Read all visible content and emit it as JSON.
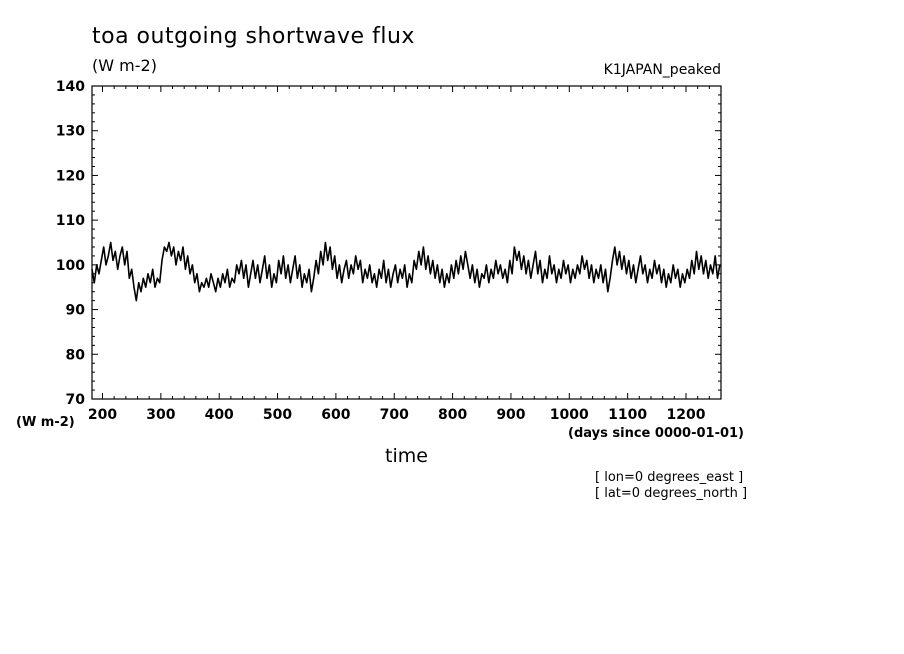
{
  "chart_data": {
    "type": "line",
    "title": "toa outgoing shortwave flux",
    "units": "(W m-2)",
    "dataset": "K1JAPAN_peaked",
    "xlabel": "time",
    "xunits": "(days since 0000-01-01)",
    "yunits": "(W m-2)",
    "lon_note": "[ lon=0 degrees_east ]",
    "lat_note": "[ lat=0 degrees_north ]",
    "xlim": [
      182,
      1260
    ],
    "ylim": [
      70,
      140
    ],
    "xticks": [
      200,
      300,
      400,
      500,
      600,
      700,
      800,
      900,
      1000,
      1100,
      1200
    ],
    "yticks": [
      70,
      80,
      90,
      100,
      110,
      120,
      130,
      140
    ],
    "grid": false,
    "series": [
      {
        "color": "#000000",
        "points": [
          [
            182,
            99
          ],
          [
            186,
            96
          ],
          [
            190,
            100
          ],
          [
            194,
            98
          ],
          [
            198,
            101
          ],
          [
            202,
            104
          ],
          [
            206,
            100
          ],
          [
            210,
            102
          ],
          [
            214,
            105
          ],
          [
            218,
            101
          ],
          [
            222,
            103
          ],
          [
            226,
            99
          ],
          [
            230,
            102
          ],
          [
            234,
            104
          ],
          [
            238,
            100
          ],
          [
            242,
            103
          ],
          [
            246,
            97
          ],
          [
            250,
            99
          ],
          [
            254,
            95
          ],
          [
            258,
            92
          ],
          [
            262,
            96
          ],
          [
            266,
            94
          ],
          [
            270,
            97
          ],
          [
            274,
            95
          ],
          [
            278,
            98
          ],
          [
            282,
            96
          ],
          [
            286,
            99
          ],
          [
            290,
            95
          ],
          [
            294,
            97
          ],
          [
            298,
            96
          ],
          [
            302,
            101
          ],
          [
            306,
            104
          ],
          [
            310,
            103
          ],
          [
            314,
            105
          ],
          [
            318,
            102
          ],
          [
            322,
            104
          ],
          [
            326,
            100
          ],
          [
            330,
            103
          ],
          [
            334,
            101
          ],
          [
            338,
            104
          ],
          [
            342,
            99
          ],
          [
            346,
            102
          ],
          [
            350,
            98
          ],
          [
            354,
            100
          ],
          [
            358,
            96
          ],
          [
            362,
            98
          ],
          [
            366,
            94
          ],
          [
            370,
            96
          ],
          [
            374,
            95
          ],
          [
            378,
            97
          ],
          [
            382,
            95
          ],
          [
            386,
            98
          ],
          [
            390,
            96
          ],
          [
            394,
            94
          ],
          [
            398,
            97
          ],
          [
            402,
            95
          ],
          [
            406,
            98
          ],
          [
            410,
            96
          ],
          [
            414,
            99
          ],
          [
            418,
            95
          ],
          [
            422,
            97
          ],
          [
            426,
            96
          ],
          [
            430,
            100
          ],
          [
            434,
            98
          ],
          [
            438,
            101
          ],
          [
            442,
            97
          ],
          [
            446,
            100
          ],
          [
            450,
            95
          ],
          [
            454,
            98
          ],
          [
            458,
            101
          ],
          [
            462,
            97
          ],
          [
            466,
            100
          ],
          [
            470,
            96
          ],
          [
            474,
            99
          ],
          [
            478,
            102
          ],
          [
            482,
            97
          ],
          [
            486,
            100
          ],
          [
            490,
            95
          ],
          [
            494,
            98
          ],
          [
            498,
            96
          ],
          [
            502,
            101
          ],
          [
            506,
            98
          ],
          [
            510,
            102
          ],
          [
            514,
            97
          ],
          [
            518,
            100
          ],
          [
            522,
            96
          ],
          [
            526,
            99
          ],
          [
            530,
            102
          ],
          [
            534,
            97
          ],
          [
            538,
            100
          ],
          [
            542,
            95
          ],
          [
            546,
            98
          ],
          [
            550,
            96
          ],
          [
            554,
            99
          ],
          [
            558,
            94
          ],
          [
            562,
            97
          ],
          [
            566,
            101
          ],
          [
            570,
            98
          ],
          [
            574,
            103
          ],
          [
            578,
            100
          ],
          [
            582,
            105
          ],
          [
            586,
            101
          ],
          [
            590,
            104
          ],
          [
            594,
            99
          ],
          [
            598,
            102
          ],
          [
            602,
            97
          ],
          [
            606,
            100
          ],
          [
            610,
            96
          ],
          [
            614,
            99
          ],
          [
            618,
            101
          ],
          [
            622,
            97
          ],
          [
            626,
            100
          ],
          [
            630,
            98
          ],
          [
            634,
            102
          ],
          [
            638,
            99
          ],
          [
            642,
            101
          ],
          [
            646,
            96
          ],
          [
            650,
            99
          ],
          [
            654,
            97
          ],
          [
            658,
            100
          ],
          [
            662,
            96
          ],
          [
            666,
            98
          ],
          [
            670,
            95
          ],
          [
            674,
            99
          ],
          [
            678,
            97
          ],
          [
            682,
            101
          ],
          [
            686,
            96
          ],
          [
            690,
            99
          ],
          [
            694,
            95
          ],
          [
            698,
            98
          ],
          [
            702,
            100
          ],
          [
            706,
            96
          ],
          [
            710,
            99
          ],
          [
            714,
            97
          ],
          [
            718,
            100
          ],
          [
            722,
            95
          ],
          [
            726,
            98
          ],
          [
            730,
            96
          ],
          [
            734,
            101
          ],
          [
            738,
            99
          ],
          [
            742,
            103
          ],
          [
            746,
            100
          ],
          [
            750,
            104
          ],
          [
            754,
            99
          ],
          [
            758,
            102
          ],
          [
            762,
            98
          ],
          [
            766,
            101
          ],
          [
            770,
            97
          ],
          [
            774,
            100
          ],
          [
            778,
            96
          ],
          [
            782,
            99
          ],
          [
            786,
            95
          ],
          [
            790,
            98
          ],
          [
            794,
            96
          ],
          [
            798,
            100
          ],
          [
            802,
            97
          ],
          [
            806,
            101
          ],
          [
            810,
            98
          ],
          [
            814,
            102
          ],
          [
            818,
            99
          ],
          [
            822,
            103
          ],
          [
            826,
            100
          ],
          [
            830,
            97
          ],
          [
            834,
            100
          ],
          [
            838,
            96
          ],
          [
            842,
            99
          ],
          [
            846,
            95
          ],
          [
            850,
            98
          ],
          [
            854,
            97
          ],
          [
            858,
            100
          ],
          [
            862,
            96
          ],
          [
            866,
            99
          ],
          [
            870,
            97
          ],
          [
            874,
            101
          ],
          [
            878,
            98
          ],
          [
            882,
            100
          ],
          [
            886,
            97
          ],
          [
            890,
            99
          ],
          [
            894,
            96
          ],
          [
            898,
            101
          ],
          [
            902,
            98
          ],
          [
            906,
            104
          ],
          [
            910,
            101
          ],
          [
            914,
            103
          ],
          [
            918,
            99
          ],
          [
            922,
            102
          ],
          [
            926,
            98
          ],
          [
            930,
            101
          ],
          [
            934,
            97
          ],
          [
            938,
            100
          ],
          [
            942,
            103
          ],
          [
            946,
            98
          ],
          [
            950,
            101
          ],
          [
            954,
            96
          ],
          [
            958,
            99
          ],
          [
            962,
            97
          ],
          [
            966,
            102
          ],
          [
            970,
            98
          ],
          [
            974,
            100
          ],
          [
            978,
            96
          ],
          [
            982,
            99
          ],
          [
            986,
            97
          ],
          [
            990,
            101
          ],
          [
            994,
            98
          ],
          [
            998,
            100
          ],
          [
            1002,
            96
          ],
          [
            1006,
            99
          ],
          [
            1010,
            97
          ],
          [
            1014,
            100
          ],
          [
            1018,
            98
          ],
          [
            1022,
            102
          ],
          [
            1026,
            99
          ],
          [
            1030,
            101
          ],
          [
            1034,
            97
          ],
          [
            1038,
            100
          ],
          [
            1042,
            96
          ],
          [
            1046,
            99
          ],
          [
            1050,
            97
          ],
          [
            1054,
            100
          ],
          [
            1058,
            96
          ],
          [
            1062,
            99
          ],
          [
            1066,
            94
          ],
          [
            1070,
            97
          ],
          [
            1074,
            101
          ],
          [
            1078,
            104
          ],
          [
            1082,
            100
          ],
          [
            1086,
            103
          ],
          [
            1090,
            99
          ],
          [
            1094,
            102
          ],
          [
            1098,
            98
          ],
          [
            1102,
            101
          ],
          [
            1106,
            97
          ],
          [
            1110,
            100
          ],
          [
            1114,
            96
          ],
          [
            1118,
            99
          ],
          [
            1122,
            102
          ],
          [
            1126,
            98
          ],
          [
            1130,
            100
          ],
          [
            1134,
            96
          ],
          [
            1138,
            99
          ],
          [
            1142,
            97
          ],
          [
            1146,
            101
          ],
          [
            1150,
            98
          ],
          [
            1154,
            100
          ],
          [
            1158,
            96
          ],
          [
            1162,
            99
          ],
          [
            1166,
            95
          ],
          [
            1170,
            98
          ],
          [
            1174,
            96
          ],
          [
            1178,
            100
          ],
          [
            1182,
            97
          ],
          [
            1186,
            99
          ],
          [
            1190,
            95
          ],
          [
            1194,
            98
          ],
          [
            1198,
            96
          ],
          [
            1202,
            99
          ],
          [
            1206,
            97
          ],
          [
            1210,
            101
          ],
          [
            1214,
            98
          ],
          [
            1218,
            103
          ],
          [
            1222,
            99
          ],
          [
            1226,
            102
          ],
          [
            1230,
            98
          ],
          [
            1234,
            101
          ],
          [
            1238,
            97
          ],
          [
            1242,
            100
          ],
          [
            1246,
            98
          ],
          [
            1250,
            102
          ],
          [
            1254,
            97
          ],
          [
            1258,
            100
          ]
        ]
      }
    ]
  }
}
